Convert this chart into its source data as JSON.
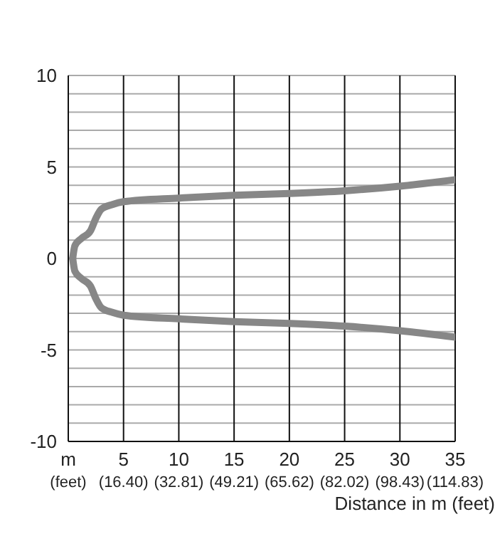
{
  "chart_data": {
    "type": "line",
    "xlabel": "Distance in m (feet)",
    "series": [
      {
        "color": "#878787",
        "x": [
          0.4,
          0.6,
          1.2,
          2,
          2.5,
          3,
          4,
          5,
          10,
          15,
          20,
          25,
          30,
          35
        ],
        "values": [
          0,
          0.7,
          1.1,
          1.5,
          2.2,
          2.7,
          2.95,
          3.1,
          3.3,
          3.45,
          3.55,
          3.7,
          3.95,
          4.3
        ]
      },
      {
        "color": "#878787",
        "x": [
          0.4,
          0.6,
          1.2,
          2,
          2.5,
          3,
          4,
          5,
          10,
          15,
          20,
          25,
          30,
          35
        ],
        "values": [
          0,
          -0.7,
          -1.1,
          -1.5,
          -2.2,
          -2.7,
          -2.95,
          -3.1,
          -3.3,
          -3.45,
          -3.55,
          -3.7,
          -3.95,
          -4.3
        ]
      }
    ],
    "xlim": [
      0,
      35
    ],
    "xticks": [
      {
        "value": 0,
        "label": "m"
      },
      5,
      10,
      15,
      20,
      25,
      30,
      35
    ],
    "x2lim": [
      0,
      114.83
    ],
    "x2ticks": [
      {
        "value": 0,
        "label": "(feet)"
      },
      {
        "value": 16.4,
        "label": "(16.40)"
      },
      {
        "value": 32.81,
        "label": "(32.81)"
      },
      {
        "value": 49.21,
        "label": "(49.21)"
      },
      {
        "value": 65.62,
        "label": "(65.62)"
      },
      {
        "value": 82.02,
        "label": "(82.02)"
      },
      {
        "value": 98.43,
        "label": "(98.43)"
      },
      {
        "value": 114.83,
        "label": "(114.83)"
      }
    ],
    "ylim": [
      -10,
      10
    ],
    "yticks": [
      -10,
      {
        "value": -9,
        "label": null
      },
      {
        "value": -8,
        "label": null
      },
      {
        "value": -7,
        "label": null
      },
      {
        "value": -6,
        "label": null
      },
      -5,
      {
        "value": -4,
        "label": null
      },
      {
        "value": -3,
        "label": null
      },
      {
        "value": -2,
        "label": null
      },
      {
        "value": -1,
        "label": null
      },
      0,
      {
        "value": 1,
        "label": null
      },
      {
        "value": 2,
        "label": null
      },
      {
        "value": 3,
        "label": null
      },
      {
        "value": 4,
        "label": null
      },
      5,
      {
        "value": 6,
        "label": null
      },
      {
        "value": 7,
        "label": null
      },
      {
        "value": 8,
        "label": null
      },
      {
        "value": 9,
        "label": null
      },
      10
    ],
    "grid": true,
    "marker": "none",
    "line_style": "solid"
  }
}
